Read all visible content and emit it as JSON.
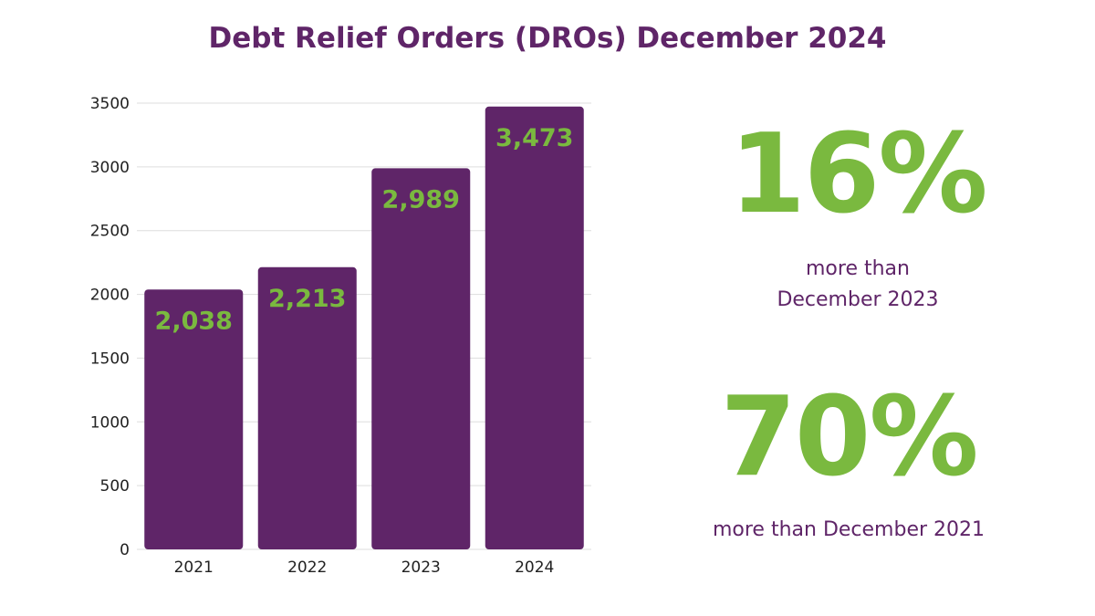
{
  "chart_data": {
    "type": "bar",
    "title": "Debt Relief Orders (DROs) December 2024",
    "categories": [
      "2021",
      "2022",
      "2023",
      "2024"
    ],
    "values": [
      2038,
      2213,
      2989,
      3473
    ],
    "data_labels": [
      "2,038",
      "2,213",
      "2,989",
      "3,473"
    ],
    "yticks": [
      "0",
      "500",
      "1000",
      "1500",
      "2000",
      "2500",
      "3000",
      "3500"
    ],
    "ylim": [
      0,
      3500
    ],
    "grid": true,
    "xlabel": "",
    "ylabel": ""
  },
  "stats": [
    {
      "value": "16%",
      "text": "more than December 2023"
    },
    {
      "value": "70%",
      "text": "more than December 2021"
    }
  ],
  "colors": {
    "bar": "#5f2568",
    "label": "#7ab93f",
    "title": "#5f2568",
    "grid": "#dddddd"
  }
}
